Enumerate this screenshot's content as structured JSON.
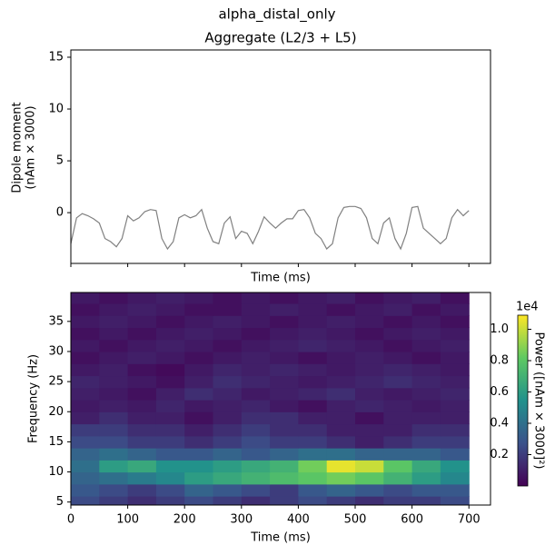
{
  "title": "alpha_distal_only",
  "chart_data": [
    {
      "type": "line",
      "title": "Aggregate (L2/3 + L5)",
      "xlabel": "Time (ms)",
      "ylabel": [
        "Dipole moment",
        "(nAm × 3000)"
      ],
      "x": [
        0,
        10,
        20,
        30,
        40,
        50,
        60,
        70,
        80,
        90,
        100,
        110,
        120,
        130,
        140,
        150,
        160,
        170,
        180,
        190,
        200,
        210,
        220,
        230,
        240,
        250,
        260,
        270,
        280,
        290,
        300,
        310,
        320,
        330,
        340,
        350,
        360,
        370,
        380,
        390,
        400,
        410,
        420,
        430,
        440,
        450,
        460,
        470,
        480,
        490,
        500,
        510,
        520,
        530,
        540,
        550,
        560,
        570,
        580,
        590,
        600,
        610,
        620,
        630,
        640,
        650,
        660,
        670,
        680,
        690,
        700
      ],
      "values": [
        -3,
        -0.5,
        -0.1,
        -0.3,
        -0.6,
        -1.0,
        -2.5,
        -2.8,
        -3.3,
        -2.5,
        -0.3,
        -0.8,
        -0.5,
        0.1,
        0.3,
        0.2,
        -2.5,
        -3.5,
        -2.8,
        -0.5,
        -0.2,
        -0.5,
        -0.3,
        0.3,
        -1.5,
        -2.8,
        -3.0,
        -1.0,
        -0.4,
        -2.5,
        -1.8,
        -2.0,
        -3.0,
        -1.8,
        -0.4,
        -1.0,
        -1.5,
        -1.0,
        -0.6,
        -0.6,
        0.2,
        0.3,
        -0.5,
        -2.0,
        -2.5,
        -3.5,
        -3.0,
        -0.5,
        0.5,
        0.6,
        0.6,
        0.4,
        -0.5,
        -2.5,
        -3.0,
        -1.0,
        -0.5,
        -2.5,
        -3.5,
        -2.0,
        0.5,
        0.6,
        -1.5,
        -2.0,
        -2.5,
        -3.0,
        -2.5,
        -0.5,
        0.3,
        -0.3,
        0.2
      ],
      "color": "#808080",
      "xlim": [
        0,
        738
      ],
      "ylim": [
        -4.9,
        15.7
      ],
      "xticks": [
        0,
        100,
        200,
        300,
        400,
        500,
        600,
        700
      ],
      "yticks": [
        0,
        5,
        10,
        15
      ]
    },
    {
      "type": "heatmap",
      "xlabel": "Time (ms)",
      "ylabel": "Frequency (Hz)",
      "x": [
        25,
        75,
        125,
        175,
        225,
        275,
        325,
        375,
        425,
        475,
        525,
        575,
        625,
        675
      ],
      "y": [
        5,
        7,
        9,
        11,
        13,
        15,
        17,
        19,
        21,
        23,
        25,
        27,
        29,
        31,
        33,
        35,
        37,
        39
      ],
      "z": [
        [
          0.25,
          0.2,
          0.15,
          0.2,
          0.25,
          0.2,
          0.15,
          0.2,
          0.25,
          0.2,
          0.15,
          0.2,
          0.2,
          0.25
        ],
        [
          0.3,
          0.25,
          0.2,
          0.25,
          0.35,
          0.3,
          0.25,
          0.2,
          0.3,
          0.35,
          0.3,
          0.25,
          0.3,
          0.3
        ],
        [
          0.35,
          0.4,
          0.45,
          0.5,
          0.6,
          0.65,
          0.7,
          0.75,
          0.8,
          0.85,
          0.8,
          0.7,
          0.6,
          0.5
        ],
        [
          0.4,
          0.6,
          0.65,
          0.55,
          0.55,
          0.6,
          0.65,
          0.7,
          0.85,
          1.05,
          1.0,
          0.8,
          0.65,
          0.55
        ],
        [
          0.35,
          0.4,
          0.35,
          0.3,
          0.3,
          0.35,
          0.3,
          0.35,
          0.4,
          0.4,
          0.35,
          0.35,
          0.35,
          0.3
        ],
        [
          0.25,
          0.25,
          0.2,
          0.2,
          0.15,
          0.2,
          0.25,
          0.2,
          0.2,
          0.15,
          0.1,
          0.15,
          0.2,
          0.2
        ],
        [
          0.2,
          0.2,
          0.15,
          0.15,
          0.1,
          0.15,
          0.2,
          0.15,
          0.15,
          0.1,
          0.1,
          0.1,
          0.15,
          0.15
        ],
        [
          0.1,
          0.15,
          0.1,
          0.1,
          0.05,
          0.1,
          0.15,
          0.15,
          0.1,
          0.1,
          0.05,
          0.1,
          0.1,
          0.1
        ],
        [
          0.08,
          0.1,
          0.08,
          0.12,
          0.08,
          0.1,
          0.12,
          0.08,
          0.05,
          0.1,
          0.12,
          0.1,
          0.08,
          0.1
        ],
        [
          0.1,
          0.08,
          0.05,
          0.1,
          0.15,
          0.12,
          0.08,
          0.1,
          0.12,
          0.15,
          0.1,
          0.08,
          0.1,
          0.12
        ],
        [
          0.12,
          0.1,
          0.08,
          0.05,
          0.1,
          0.15,
          0.12,
          0.1,
          0.08,
          0.1,
          0.12,
          0.15,
          0.12,
          0.1
        ],
        [
          0.08,
          0.1,
          0.05,
          0.03,
          0.08,
          0.12,
          0.1,
          0.12,
          0.1,
          0.08,
          0.1,
          0.12,
          0.1,
          0.08
        ],
        [
          0.05,
          0.08,
          0.1,
          0.08,
          0.05,
          0.08,
          0.1,
          0.08,
          0.05,
          0.08,
          0.1,
          0.08,
          0.05,
          0.08
        ],
        [
          0.08,
          0.05,
          0.08,
          0.1,
          0.08,
          0.05,
          0.08,
          0.1,
          0.12,
          0.1,
          0.08,
          0.05,
          0.08,
          0.1
        ],
        [
          0.05,
          0.08,
          0.05,
          0.08,
          0.1,
          0.08,
          0.05,
          0.08,
          0.1,
          0.08,
          0.05,
          0.08,
          0.1,
          0.08
        ],
        [
          0.08,
          0.1,
          0.08,
          0.05,
          0.08,
          0.1,
          0.08,
          0.05,
          0.08,
          0.1,
          0.08,
          0.05,
          0.08,
          0.05
        ],
        [
          0.05,
          0.08,
          0.1,
          0.08,
          0.05,
          0.05,
          0.08,
          0.1,
          0.08,
          0.05,
          0.08,
          0.1,
          0.05,
          0.08
        ],
        [
          0.08,
          0.05,
          0.08,
          0.1,
          0.08,
          0.05,
          0.08,
          0.05,
          0.08,
          0.1,
          0.05,
          0.08,
          0.1,
          0.05
        ]
      ],
      "colormap": "viridis",
      "clim": [
        0.0,
        1.09
      ],
      "xlim": [
        0,
        738
      ],
      "ylim": [
        4.5,
        39.8
      ],
      "xticks": [
        0,
        100,
        200,
        300,
        400,
        500,
        600,
        700
      ],
      "yticks": [
        5,
        10,
        15,
        20,
        25,
        30,
        35
      ],
      "colorbar": {
        "label": "Power ([nAm × 3000]²)",
        "offset_label": "1e4",
        "ticks": [
          0.2,
          0.4,
          0.6,
          0.8,
          {
            "value": 1,
            "label": "1.0"
          }
        ]
      }
    }
  ]
}
